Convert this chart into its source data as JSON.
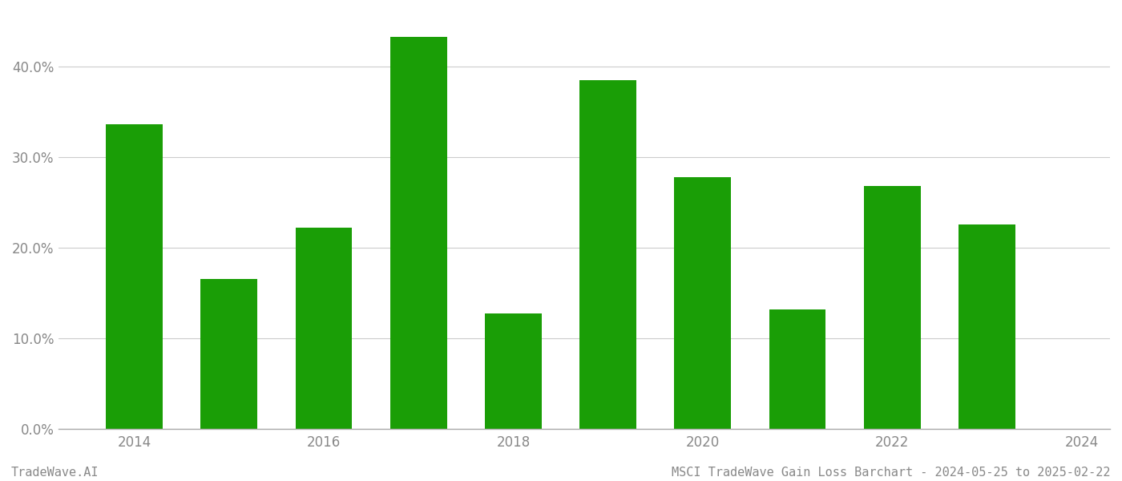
{
  "years": [
    2014,
    2015,
    2016,
    2017,
    2018,
    2019,
    2020,
    2021,
    2022,
    2023
  ],
  "values": [
    0.336,
    0.165,
    0.222,
    0.433,
    0.127,
    0.385,
    0.278,
    0.132,
    0.268,
    0.225
  ],
  "bar_color": "#1a9e06",
  "background_color": "#ffffff",
  "grid_color": "#cccccc",
  "axis_color": "#aaaaaa",
  "tick_color": "#888888",
  "ylim_min": 0.0,
  "ylim_max": 0.46,
  "ytick_values": [
    0.0,
    0.1,
    0.2,
    0.3,
    0.4
  ],
  "xtick_positions": [
    2014,
    2016,
    2018,
    2020,
    2022,
    2024
  ],
  "xlim_min": 2013.2,
  "xlim_max": 2024.3,
  "bar_width": 0.6,
  "footer_left": "TradeWave.AI",
  "footer_right": "MSCI TradeWave Gain Loss Barchart - 2024-05-25 to 2025-02-22",
  "footer_fontsize": 11,
  "footer_color": "#888888"
}
